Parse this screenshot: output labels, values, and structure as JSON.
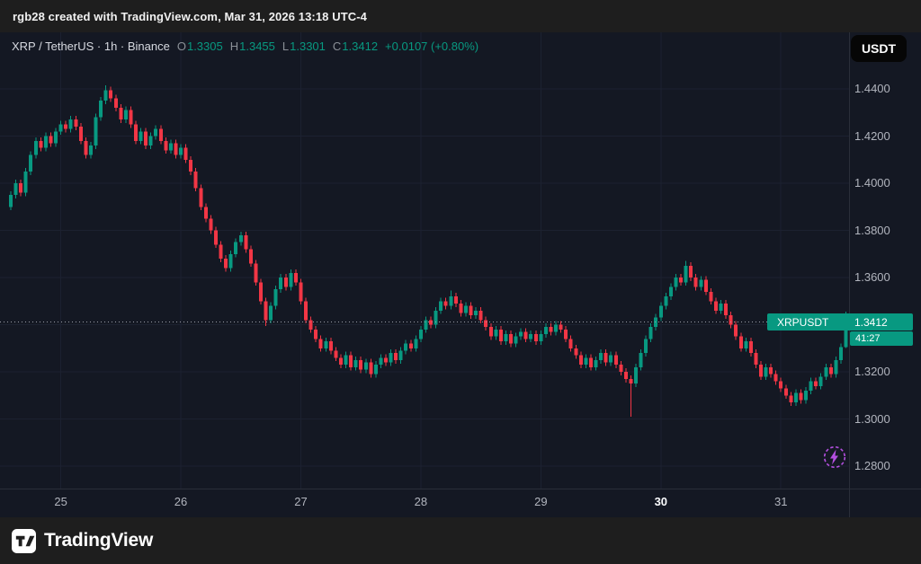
{
  "topbar": {
    "attribution": "rgb28 created with TradingView.com, Mar 31, 2026 13:18 UTC-4"
  },
  "toolbar": {
    "currency": "USDT"
  },
  "legend": {
    "title": "XRP / TetherUS · 1h · Binance",
    "o_label": "O",
    "o": "1.3305",
    "h_label": "H",
    "h": "1.3455",
    "l_label": "L",
    "l": "1.3301",
    "c_label": "C",
    "c": "1.3412",
    "change": "+0.0107 (+0.80%)"
  },
  "price_badge": {
    "symbol": "XRPUSDT",
    "price": "1.3412",
    "countdown": "41:27"
  },
  "footer": {
    "brand": "TradingView"
  },
  "colors": {
    "green": "#089981",
    "red": "#f23645",
    "purple": "#b44fe0"
  },
  "chart_data": {
    "type": "candlestick",
    "symbol": "XRP/USDT",
    "interval": "1h",
    "exchange": "Binance",
    "last_price": 1.3412,
    "colors": {
      "up": "#089981",
      "down": "#f23645"
    },
    "y_axis": {
      "min": 1.2705,
      "max": 1.446,
      "grid": [
        1.44,
        1.42,
        1.4,
        1.38,
        1.36,
        1.34,
        1.32,
        1.3,
        1.28
      ],
      "ticks": [
        {
          "label": "1.4400",
          "price": 1.44
        },
        {
          "label": "1.4200",
          "price": 1.42
        },
        {
          "label": "1.4000",
          "price": 1.4
        },
        {
          "label": "1.3800",
          "price": 1.38
        },
        {
          "label": "1.3600",
          "price": 1.36
        },
        {
          "label": "1.3200",
          "price": 1.32
        },
        {
          "label": "1.3000",
          "price": 1.3
        },
        {
          "label": "1.2800",
          "price": 1.28
        }
      ]
    },
    "x_axis": {
      "days": [
        {
          "label": "25",
          "start_index": 10
        },
        {
          "label": "26",
          "start_index": 34
        },
        {
          "label": "27",
          "start_index": 58
        },
        {
          "label": "28",
          "start_index": 82
        },
        {
          "label": "29",
          "start_index": 106
        },
        {
          "label": "30",
          "start_index": 130,
          "emphasis": true
        },
        {
          "label": "31",
          "start_index": 154
        }
      ]
    },
    "candles": [
      [
        1.39,
        1.3965,
        1.3885,
        1.395
      ],
      [
        1.395,
        1.4015,
        1.3935,
        1.4
      ],
      [
        1.4,
        1.4015,
        1.3945,
        1.396
      ],
      [
        1.396,
        1.4065,
        1.3945,
        1.405
      ],
      [
        1.405,
        1.4135,
        1.4035,
        1.412
      ],
      [
        1.412,
        1.4195,
        1.4105,
        1.418
      ],
      [
        1.418,
        1.4195,
        1.4135,
        1.415
      ],
      [
        1.415,
        1.4215,
        1.4135,
        1.42
      ],
      [
        1.42,
        1.4215,
        1.4155,
        1.417
      ],
      [
        1.417,
        1.4235,
        1.4155,
        1.422
      ],
      [
        1.422,
        1.4265,
        1.4205,
        1.425
      ],
      [
        1.425,
        1.4265,
        1.4215,
        1.423
      ],
      [
        1.423,
        1.4285,
        1.4215,
        1.427
      ],
      [
        1.427,
        1.4285,
        1.4225,
        1.424
      ],
      [
        1.424,
        1.4255,
        1.4165,
        1.418
      ],
      [
        1.418,
        1.4195,
        1.4105,
        1.412
      ],
      [
        1.412,
        1.4175,
        1.4105,
        1.416
      ],
      [
        1.416,
        1.4295,
        1.4145,
        1.428
      ],
      [
        1.428,
        1.4365,
        1.4265,
        1.435
      ],
      [
        1.435,
        1.4415,
        1.4335,
        1.4395
      ],
      [
        1.4395,
        1.441,
        1.4345,
        1.436
      ],
      [
        1.436,
        1.4375,
        1.4305,
        1.432
      ],
      [
        1.432,
        1.4335,
        1.4255,
        1.427
      ],
      [
        1.427,
        1.4325,
        1.4255,
        1.431
      ],
      [
        1.431,
        1.4325,
        1.4235,
        1.425
      ],
      [
        1.425,
        1.4265,
        1.4165,
        1.418
      ],
      [
        1.418,
        1.4235,
        1.4165,
        1.422
      ],
      [
        1.422,
        1.4235,
        1.4145,
        1.416
      ],
      [
        1.416,
        1.4215,
        1.4145,
        1.42
      ],
      [
        1.42,
        1.4245,
        1.4185,
        1.423
      ],
      [
        1.423,
        1.4245,
        1.4165,
        1.418
      ],
      [
        1.418,
        1.4195,
        1.4125,
        1.414
      ],
      [
        1.414,
        1.4185,
        1.4125,
        1.417
      ],
      [
        1.417,
        1.4185,
        1.4105,
        1.412
      ],
      [
        1.412,
        1.4165,
        1.4105,
        1.415
      ],
      [
        1.415,
        1.4165,
        1.4085,
        1.41
      ],
      [
        1.41,
        1.4115,
        1.4035,
        1.405
      ],
      [
        1.405,
        1.4065,
        1.3965,
        1.398
      ],
      [
        1.398,
        1.3995,
        1.3885,
        1.39
      ],
      [
        1.39,
        1.3915,
        1.3835,
        1.385
      ],
      [
        1.385,
        1.3865,
        1.3785,
        1.38
      ],
      [
        1.38,
        1.3815,
        1.3725,
        1.374
      ],
      [
        1.374,
        1.3755,
        1.3665,
        1.368
      ],
      [
        1.368,
        1.3695,
        1.3625,
        1.364
      ],
      [
        1.364,
        1.3715,
        1.3625,
        1.37
      ],
      [
        1.37,
        1.3765,
        1.3685,
        1.375
      ],
      [
        1.375,
        1.3795,
        1.3735,
        1.378
      ],
      [
        1.378,
        1.3795,
        1.3705,
        1.372
      ],
      [
        1.372,
        1.3735,
        1.3645,
        1.366
      ],
      [
        1.366,
        1.3675,
        1.3565,
        1.358
      ],
      [
        1.358,
        1.3595,
        1.3485,
        1.35
      ],
      [
        1.35,
        1.3515,
        1.3395,
        1.342
      ],
      [
        1.342,
        1.3495,
        1.3405,
        1.348
      ],
      [
        1.348,
        1.3565,
        1.3465,
        1.355
      ],
      [
        1.355,
        1.3615,
        1.3535,
        1.36
      ],
      [
        1.36,
        1.3615,
        1.3545,
        1.356
      ],
      [
        1.356,
        1.3635,
        1.3545,
        1.362
      ],
      [
        1.362,
        1.3635,
        1.3565,
        1.358
      ],
      [
        1.358,
        1.3595,
        1.3485,
        1.35
      ],
      [
        1.35,
        1.3515,
        1.3405,
        1.342
      ],
      [
        1.342,
        1.3435,
        1.3365,
        1.338
      ],
      [
        1.338,
        1.3395,
        1.3325,
        1.334
      ],
      [
        1.334,
        1.3355,
        1.3285,
        1.33
      ],
      [
        1.33,
        1.3345,
        1.3285,
        1.333
      ],
      [
        1.333,
        1.3345,
        1.3275,
        1.329
      ],
      [
        1.329,
        1.3305,
        1.3245,
        1.326
      ],
      [
        1.326,
        1.3275,
        1.3215,
        1.323
      ],
      [
        1.323,
        1.3285,
        1.3215,
        1.327
      ],
      [
        1.327,
        1.3285,
        1.3205,
        1.322
      ],
      [
        1.322,
        1.3265,
        1.3205,
        1.325
      ],
      [
        1.325,
        1.3265,
        1.3195,
        1.321
      ],
      [
        1.321,
        1.3255,
        1.3195,
        1.324
      ],
      [
        1.324,
        1.3255,
        1.3175,
        1.319
      ],
      [
        1.319,
        1.3245,
        1.3175,
        1.323
      ],
      [
        1.323,
        1.3275,
        1.3215,
        1.326
      ],
      [
        1.326,
        1.3275,
        1.3225,
        1.324
      ],
      [
        1.324,
        1.3295,
        1.3225,
        1.328
      ],
      [
        1.328,
        1.3295,
        1.3235,
        1.325
      ],
      [
        1.325,
        1.3305,
        1.3235,
        1.329
      ],
      [
        1.329,
        1.3335,
        1.3275,
        1.332
      ],
      [
        1.332,
        1.3335,
        1.3285,
        1.33
      ],
      [
        1.33,
        1.3355,
        1.3285,
        1.334
      ],
      [
        1.334,
        1.3395,
        1.3325,
        1.338
      ],
      [
        1.338,
        1.3435,
        1.3365,
        1.342
      ],
      [
        1.342,
        1.3435,
        1.3385,
        1.34
      ],
      [
        1.34,
        1.3475,
        1.3385,
        1.346
      ],
      [
        1.346,
        1.3515,
        1.3445,
        1.35
      ],
      [
        1.35,
        1.3515,
        1.3465,
        1.348
      ],
      [
        1.348,
        1.3545,
        1.3465,
        1.352
      ],
      [
        1.352,
        1.3535,
        1.3475,
        1.349
      ],
      [
        1.349,
        1.3505,
        1.3435,
        1.345
      ],
      [
        1.345,
        1.3495,
        1.3435,
        1.348
      ],
      [
        1.348,
        1.3495,
        1.3425,
        1.344
      ],
      [
        1.344,
        1.3475,
        1.3425,
        1.346
      ],
      [
        1.346,
        1.3475,
        1.3405,
        1.342
      ],
      [
        1.342,
        1.3435,
        1.3375,
        1.339
      ],
      [
        1.339,
        1.3405,
        1.3335,
        1.335
      ],
      [
        1.335,
        1.3395,
        1.3335,
        1.338
      ],
      [
        1.338,
        1.3395,
        1.3315,
        1.333
      ],
      [
        1.333,
        1.3375,
        1.3315,
        1.336
      ],
      [
        1.336,
        1.3375,
        1.3305,
        1.332
      ],
      [
        1.332,
        1.3365,
        1.3305,
        1.335
      ],
      [
        1.335,
        1.3385,
        1.3335,
        1.337
      ],
      [
        1.337,
        1.3385,
        1.3325,
        1.334
      ],
      [
        1.334,
        1.3375,
        1.3325,
        1.336
      ],
      [
        1.336,
        1.3375,
        1.3315,
        1.333
      ],
      [
        1.333,
        1.3375,
        1.3315,
        1.336
      ],
      [
        1.336,
        1.3405,
        1.3345,
        1.339
      ],
      [
        1.339,
        1.3405,
        1.3355,
        1.337
      ],
      [
        1.337,
        1.3415,
        1.3355,
        1.34
      ],
      [
        1.34,
        1.3415,
        1.3365,
        1.338
      ],
      [
        1.338,
        1.3395,
        1.3325,
        1.334
      ],
      [
        1.334,
        1.3355,
        1.3285,
        1.33
      ],
      [
        1.33,
        1.3315,
        1.3255,
        1.327
      ],
      [
        1.327,
        1.3285,
        1.3215,
        1.323
      ],
      [
        1.323,
        1.3275,
        1.3215,
        1.326
      ],
      [
        1.326,
        1.3275,
        1.3205,
        1.322
      ],
      [
        1.322,
        1.3265,
        1.3205,
        1.325
      ],
      [
        1.325,
        1.3295,
        1.3235,
        1.328
      ],
      [
        1.328,
        1.3295,
        1.3225,
        1.324
      ],
      [
        1.324,
        1.3285,
        1.3225,
        1.327
      ],
      [
        1.327,
        1.3285,
        1.3215,
        1.323
      ],
      [
        1.323,
        1.3245,
        1.3185,
        1.32
      ],
      [
        1.32,
        1.3215,
        1.3155,
        1.317
      ],
      [
        1.317,
        1.3185,
        1.301,
        1.315
      ],
      [
        1.315,
        1.3235,
        1.3135,
        1.322
      ],
      [
        1.322,
        1.3295,
        1.3205,
        1.328
      ],
      [
        1.328,
        1.3355,
        1.3265,
        1.334
      ],
      [
        1.334,
        1.3405,
        1.3325,
        1.339
      ],
      [
        1.339,
        1.3445,
        1.3375,
        1.343
      ],
      [
        1.343,
        1.3495,
        1.3415,
        1.348
      ],
      [
        1.348,
        1.3535,
        1.3465,
        1.352
      ],
      [
        1.352,
        1.3575,
        1.3505,
        1.356
      ],
      [
        1.356,
        1.3615,
        1.3545,
        1.36
      ],
      [
        1.36,
        1.3615,
        1.3565,
        1.358
      ],
      [
        1.358,
        1.367,
        1.3565,
        1.365
      ],
      [
        1.365,
        1.3665,
        1.3585,
        1.36
      ],
      [
        1.36,
        1.3615,
        1.3545,
        1.356
      ],
      [
        1.356,
        1.3605,
        1.3545,
        1.359
      ],
      [
        1.359,
        1.3605,
        1.3525,
        1.354
      ],
      [
        1.354,
        1.3555,
        1.3485,
        1.35
      ],
      [
        1.35,
        1.3515,
        1.3445,
        1.346
      ],
      [
        1.346,
        1.3505,
        1.3445,
        1.349
      ],
      [
        1.349,
        1.3505,
        1.3425,
        1.344
      ],
      [
        1.344,
        1.3455,
        1.3385,
        1.34
      ],
      [
        1.34,
        1.3415,
        1.3335,
        1.335
      ],
      [
        1.335,
        1.3365,
        1.3285,
        1.33
      ],
      [
        1.33,
        1.3345,
        1.3285,
        1.333
      ],
      [
        1.333,
        1.3345,
        1.3265,
        1.328
      ],
      [
        1.328,
        1.3295,
        1.3215,
        1.323
      ],
      [
        1.323,
        1.3245,
        1.3165,
        1.318
      ],
      [
        1.318,
        1.3235,
        1.3165,
        1.322
      ],
      [
        1.322,
        1.3235,
        1.3175,
        1.319
      ],
      [
        1.319,
        1.3205,
        1.3145,
        1.316
      ],
      [
        1.316,
        1.3175,
        1.3115,
        1.313
      ],
      [
        1.313,
        1.3145,
        1.3085,
        1.31
      ],
      [
        1.31,
        1.3115,
        1.3055,
        1.307
      ],
      [
        1.307,
        1.3125,
        1.3055,
        1.311
      ],
      [
        1.311,
        1.3125,
        1.3065,
        1.308
      ],
      [
        1.308,
        1.3135,
        1.3065,
        1.312
      ],
      [
        1.312,
        1.3175,
        1.3105,
        1.316
      ],
      [
        1.316,
        1.3175,
        1.3125,
        1.314
      ],
      [
        1.314,
        1.3195,
        1.3125,
        1.318
      ],
      [
        1.318,
        1.3235,
        1.3165,
        1.322
      ],
      [
        1.322,
        1.3235,
        1.3175,
        1.319
      ],
      [
        1.319,
        1.3265,
        1.3175,
        1.325
      ],
      [
        1.325,
        1.332,
        1.3235,
        1.3305
      ],
      [
        1.3305,
        1.3455,
        1.3301,
        1.3412
      ]
    ]
  }
}
